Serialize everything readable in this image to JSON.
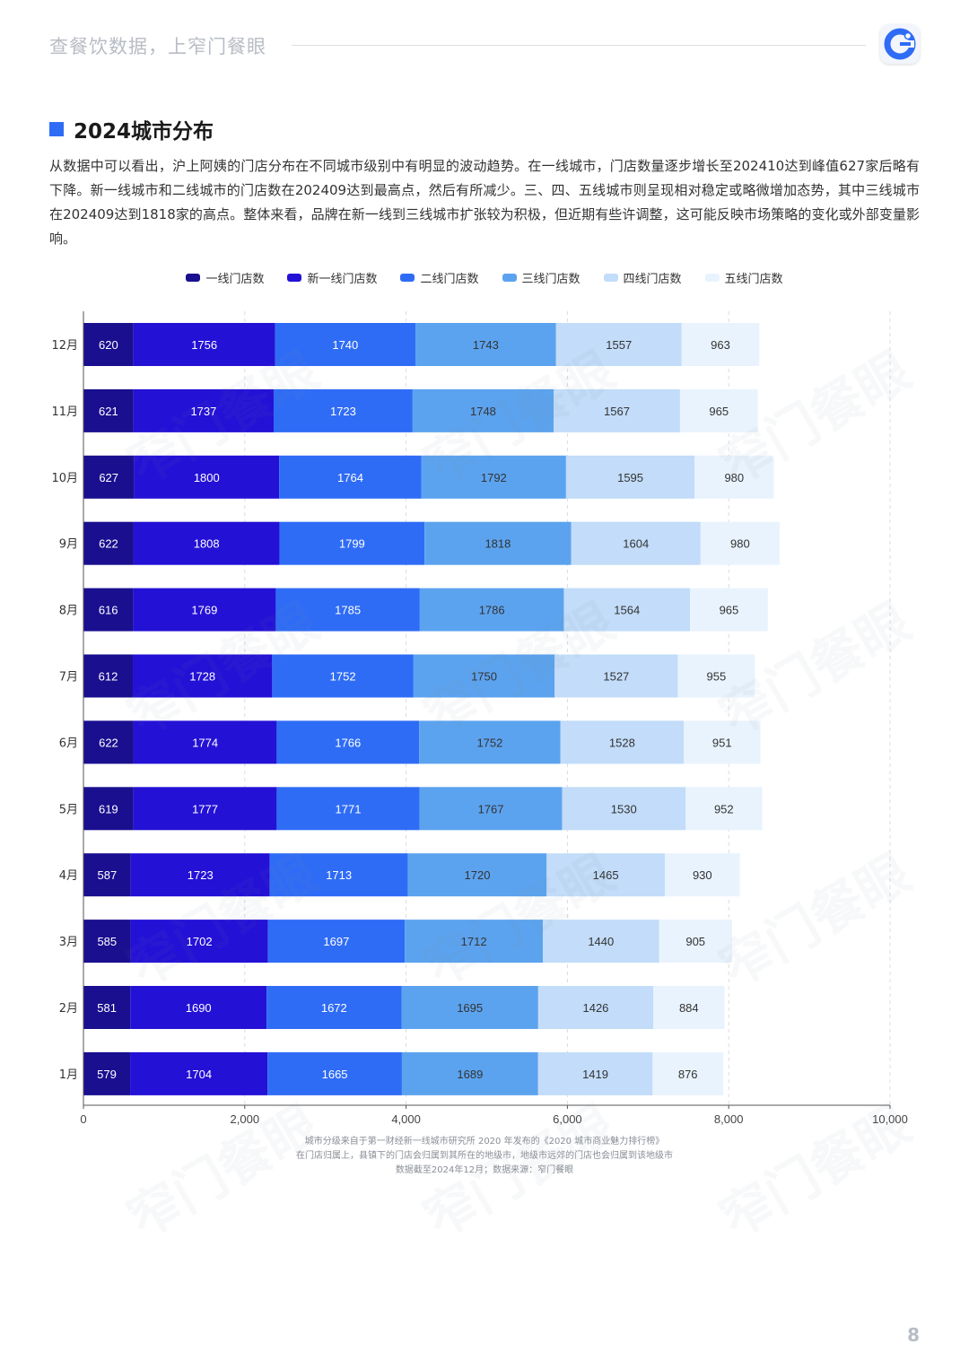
{
  "header": {
    "slogan": "查餐饮数据，上窄门餐眼"
  },
  "section": {
    "title": "2024城市分布"
  },
  "description": "从数据中可以看出，沪上阿姨的门店分布在不同城市级别中有明显的波动趋势。在一线城市，门店数量逐步增长至202410达到峰值627家后略有下降。新一线城市和二线城市的门店数在202409达到最高点，然后有所减少。三、四、五线城市则呈现相对稳定或略微增加态势，其中三线城市在202409达到1818家的高点。整体来看，品牌在新一线到三线城市扩张较为积极，但近期有些许调整，这可能反映市场策略的变化或外部变量影响。",
  "chart_data": {
    "type": "bar",
    "orientation": "horizontal",
    "stacked": true,
    "categories": [
      "12月",
      "11月",
      "10月",
      "9月",
      "8月",
      "7月",
      "6月",
      "5月",
      "4月",
      "3月",
      "2月",
      "1月"
    ],
    "series": [
      {
        "name": "一线门店数",
        "color": "#1a0f8f",
        "values": [
          620,
          621,
          627,
          622,
          616,
          612,
          622,
          619,
          587,
          585,
          581,
          579
        ]
      },
      {
        "name": "新一线门店数",
        "color": "#2411d6",
        "values": [
          1756,
          1737,
          1800,
          1808,
          1769,
          1728,
          1774,
          1777,
          1723,
          1702,
          1690,
          1704
        ]
      },
      {
        "name": "二线门店数",
        "color": "#2f6cf6",
        "values": [
          1740,
          1723,
          1764,
          1799,
          1785,
          1752,
          1766,
          1771,
          1713,
          1697,
          1672,
          1665
        ]
      },
      {
        "name": "三线门店数",
        "color": "#5ca3ef",
        "values": [
          1743,
          1748,
          1792,
          1818,
          1786,
          1750,
          1752,
          1767,
          1720,
          1712,
          1695,
          1689
        ]
      },
      {
        "name": "四线门店数",
        "color": "#c2dcf9",
        "values": [
          1557,
          1567,
          1595,
          1604,
          1564,
          1527,
          1528,
          1530,
          1465,
          1440,
          1426,
          1419
        ]
      },
      {
        "name": "五线门店数",
        "color": "#e8f3fd",
        "values": [
          963,
          965,
          980,
          980,
          965,
          955,
          951,
          952,
          930,
          905,
          884,
          876
        ]
      }
    ],
    "xlim": [
      0,
      10000
    ],
    "xticks": [
      "0",
      "2,000",
      "4,000",
      "6,000",
      "8,000",
      "10,000"
    ],
    "xtick_values": [
      0,
      2000,
      4000,
      6000,
      8000,
      10000
    ],
    "grid": "vertical-dashed",
    "legend": "top-center"
  },
  "footnotes": [
    "城市分级来自于第一财经新一线城市研究所 2020 年发布的《2020 城市商业魅力排行榜》",
    "在门店归属上，县镇下的门店会归属到其所在的地级市，地级市远郊的门店也会归属到该地级市",
    "数据截至2024年12月；数据来源：窄门餐眼"
  ],
  "watermark": "窄门餐眼",
  "page_number": "8"
}
